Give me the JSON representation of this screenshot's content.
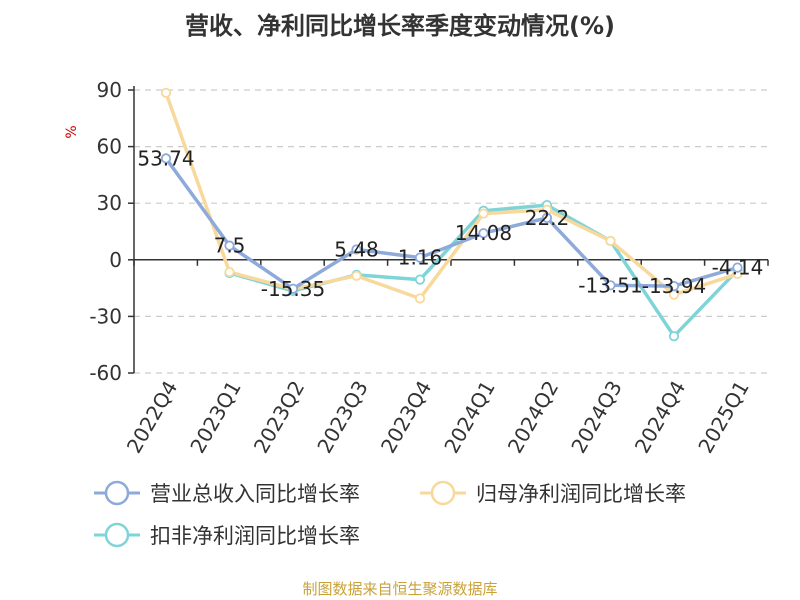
{
  "chart_data": {
    "type": "line",
    "title": "营收、净利同比增长率季度变动情况(%)",
    "ylabel": "%",
    "xlabel": "",
    "categories": [
      "2022Q4",
      "2023Q1",
      "2023Q2",
      "2023Q3",
      "2023Q4",
      "2024Q1",
      "2024Q2",
      "2024Q3",
      "2024Q4",
      "2025Q1"
    ],
    "ylim": [
      -60,
      90
    ],
    "yticks": [
      90,
      60,
      30,
      0,
      -30,
      -60
    ],
    "grid": true,
    "legend_position": "bottom",
    "series": [
      {
        "name": "营业总收入同比增长率",
        "color": "#8eaadb",
        "values": [
          53.74,
          7.5,
          -15.35,
          5.48,
          1.16,
          14.08,
          22.2,
          -13.51,
          -13.94,
          -4.14
        ],
        "data_labels": [
          "53.74",
          "7.5",
          "-15.35",
          "5.48",
          "1.16",
          "14.08",
          "22.2",
          "-13.51",
          "-13.94",
          "-4.14"
        ]
      },
      {
        "name": "归母净利润同比增长率",
        "color": "#f8d99b",
        "values": [
          88.5,
          -6.5,
          -15.5,
          -8.5,
          -20.5,
          24.5,
          26.5,
          10.0,
          -18.5,
          -7.5
        ]
      },
      {
        "name": "扣非净利润同比增长率",
        "color": "#7fd4d8",
        "values": [
          null,
          -7.0,
          -16.5,
          -8.0,
          -10.5,
          26.0,
          29.0,
          10.0,
          -40.5,
          -5.5
        ]
      }
    ]
  },
  "footer": {
    "source": "制图数据来自恒生聚源数据库"
  }
}
